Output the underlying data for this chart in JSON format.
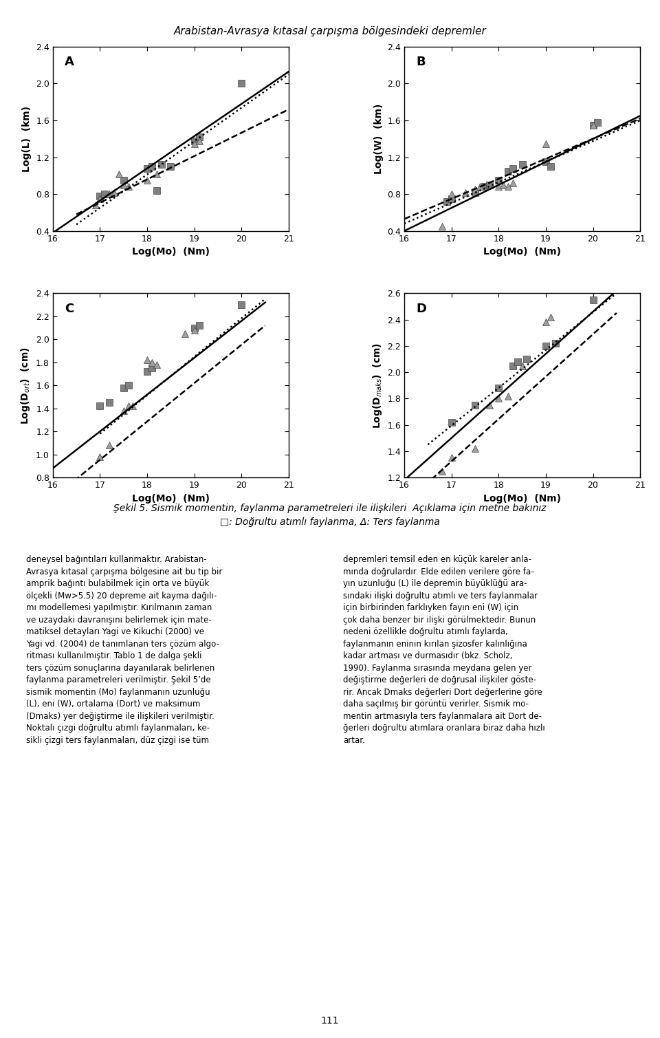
{
  "title": "Arabistan-Avrasya kıtasal çarpışma bölgesindeki depremler",
  "caption_line1": "Şekil 5. Sismik momentin, faylanma parametreleri ile ilişkileri  Açıklama için metne bakınız",
  "caption_line2": "□: Doğrultu atımlı faylanma, Δ: Ters faylanma",
  "panels": [
    {
      "label": "A",
      "ylabel": "Log(L)  (km)",
      "xlabel": "Log(Mo)  (Nm)",
      "xlim": [
        16,
        21
      ],
      "ylim": [
        0.4,
        2.4
      ],
      "yticks": [
        0.4,
        0.8,
        1.2,
        1.6,
        2.0,
        2.4
      ],
      "xticks": [
        16,
        17,
        18,
        19,
        20,
        21
      ],
      "squares": [
        [
          17.0,
          0.78
        ],
        [
          17.1,
          0.8
        ],
        [
          17.5,
          0.95
        ],
        [
          18.0,
          1.08
        ],
        [
          18.1,
          1.1
        ],
        [
          18.2,
          0.84
        ],
        [
          18.3,
          1.12
        ],
        [
          18.5,
          1.1
        ],
        [
          19.0,
          1.38
        ],
        [
          19.1,
          1.42
        ],
        [
          20.0,
          2.0
        ]
      ],
      "triangles": [
        [
          16.9,
          0.68
        ],
        [
          17.0,
          0.75
        ],
        [
          17.2,
          0.8
        ],
        [
          17.3,
          0.82
        ],
        [
          17.4,
          1.02
        ],
        [
          17.5,
          0.9
        ],
        [
          17.6,
          0.88
        ],
        [
          18.0,
          0.95
        ],
        [
          18.2,
          1.02
        ],
        [
          19.0,
          1.35
        ],
        [
          19.1,
          1.38
        ]
      ],
      "solid_line": {
        "x": [
          16,
          21
        ],
        "y": [
          0.38,
          2.13
        ]
      },
      "dotted_line": {
        "x": [
          16.5,
          21
        ],
        "y": [
          0.47,
          2.1
        ]
      },
      "dashed_line": {
        "x": [
          16.5,
          21
        ],
        "y": [
          0.58,
          1.72
        ]
      }
    },
    {
      "label": "B",
      "ylabel": "Log(W)  (km)",
      "xlabel": "Log(Mo)  (Nm)",
      "xlim": [
        16,
        21
      ],
      "ylim": [
        0.4,
        2.4
      ],
      "yticks": [
        0.4,
        0.8,
        1.2,
        1.6,
        2.0,
        2.4
      ],
      "xticks": [
        16,
        17,
        18,
        19,
        20,
        21
      ],
      "squares": [
        [
          16.9,
          0.72
        ],
        [
          17.0,
          0.75
        ],
        [
          17.5,
          0.82
        ],
        [
          17.7,
          0.88
        ],
        [
          17.8,
          0.9
        ],
        [
          18.0,
          0.95
        ],
        [
          18.2,
          1.05
        ],
        [
          18.3,
          1.08
        ],
        [
          18.5,
          1.12
        ],
        [
          19.0,
          1.15
        ],
        [
          19.1,
          1.1
        ],
        [
          20.0,
          1.55
        ],
        [
          20.1,
          1.58
        ]
      ],
      "triangles": [
        [
          16.8,
          0.45
        ],
        [
          17.0,
          0.8
        ],
        [
          17.3,
          0.82
        ],
        [
          17.5,
          0.85
        ],
        [
          17.6,
          0.88
        ],
        [
          18.0,
          0.88
        ],
        [
          18.1,
          0.9
        ],
        [
          18.2,
          0.88
        ],
        [
          18.3,
          0.92
        ],
        [
          19.0,
          1.35
        ],
        [
          20.0,
          1.55
        ]
      ],
      "solid_line": {
        "x": [
          16,
          21
        ],
        "y": [
          0.4,
          1.65
        ]
      },
      "dotted_line": {
        "x": [
          16,
          21
        ],
        "y": [
          0.48,
          1.6
        ]
      },
      "dashed_line": {
        "x": [
          16,
          21
        ],
        "y": [
          0.53,
          1.62
        ]
      }
    },
    {
      "label": "C",
      "ylabel": "Log(D$_{ort}$)  (cm)",
      "xlabel": "Log(Mo)  (Nm)",
      "xlim": [
        16,
        21
      ],
      "ylim": [
        0.8,
        2.4
      ],
      "yticks": [
        0.8,
        1.0,
        1.2,
        1.4,
        1.6,
        1.8,
        2.0,
        2.2,
        2.4
      ],
      "xticks": [
        16,
        17,
        18,
        19,
        20,
        21
      ],
      "squares": [
        [
          17.0,
          1.42
        ],
        [
          17.2,
          1.45
        ],
        [
          17.5,
          1.58
        ],
        [
          17.6,
          1.6
        ],
        [
          18.0,
          1.72
        ],
        [
          18.1,
          1.75
        ],
        [
          19.0,
          2.1
        ],
        [
          19.1,
          2.12
        ],
        [
          20.0,
          2.3
        ]
      ],
      "triangles": [
        [
          17.0,
          0.98
        ],
        [
          17.2,
          1.08
        ],
        [
          17.5,
          1.38
        ],
        [
          17.6,
          1.42
        ],
        [
          17.7,
          1.42
        ],
        [
          18.0,
          1.82
        ],
        [
          18.1,
          1.8
        ],
        [
          18.2,
          1.78
        ],
        [
          18.8,
          2.05
        ],
        [
          19.0,
          2.08
        ]
      ],
      "solid_line": {
        "x": [
          16,
          20.5
        ],
        "y": [
          0.88,
          2.32
        ]
      },
      "dotted_line": {
        "x": [
          17.0,
          20.5
        ],
        "y": [
          1.18,
          2.35
        ]
      },
      "dashed_line": {
        "x": [
          16,
          20.5
        ],
        "y": [
          0.62,
          2.12
        ]
      }
    },
    {
      "label": "D",
      "ylabel": "Log(D$_{maks}$)  (cm)",
      "xlabel": "Log(Mo)  (Nm)",
      "xlim": [
        16,
        21
      ],
      "ylim": [
        1.2,
        2.6
      ],
      "yticks": [
        1.2,
        1.4,
        1.6,
        1.8,
        2.0,
        2.2,
        2.4,
        2.6
      ],
      "xticks": [
        16,
        17,
        18,
        19,
        20,
        21
      ],
      "squares": [
        [
          17.0,
          1.62
        ],
        [
          17.5,
          1.75
        ],
        [
          18.0,
          1.88
        ],
        [
          18.3,
          2.05
        ],
        [
          18.4,
          2.08
        ],
        [
          18.6,
          2.1
        ],
        [
          19.0,
          2.2
        ],
        [
          19.2,
          2.22
        ],
        [
          20.0,
          2.55
        ]
      ],
      "triangles": [
        [
          16.8,
          1.25
        ],
        [
          17.0,
          1.35
        ],
        [
          17.5,
          1.42
        ],
        [
          17.8,
          1.75
        ],
        [
          18.0,
          1.8
        ],
        [
          18.2,
          1.82
        ],
        [
          18.5,
          2.05
        ],
        [
          19.0,
          2.38
        ],
        [
          19.1,
          2.42
        ]
      ],
      "solid_line": {
        "x": [
          16,
          20.5
        ],
        "y": [
          1.18,
          2.62
        ]
      },
      "dotted_line": {
        "x": [
          16.5,
          20.5
        ],
        "y": [
          1.45,
          2.6
        ]
      },
      "dashed_line": {
        "x": [
          16,
          20.5
        ],
        "y": [
          1.0,
          2.45
        ]
      }
    }
  ],
  "text_body_left": "deneysel bağıntıları kullanmaktır. Arabistan-\nAvrasya kıtasal çarpışma bölgesine ait bu tip bir\namprik bağıntı bulabilmek için orta ve büyük\nölçekli (Mw>5.5) 20 depreme ait kayma dağılı-\nmı modellemesi yapılmıştır. Kırılmanın zaman\nve uzaydaki davranışını belirlemek için mate-\nmatiksel detayları Yagi ve Kikuchi (2000) ve\nYagi vd. (2004) de tanımlanan ters çözüm algo-\nritması kullanılmıştır. Tablo 1 de dalga şekli\nters çözüm sonuçlarına dayanılarak belirlenen\nfaylanma parametreleri verilmiştir. Şekil 5’de\nsismik momentin (Mo) faylanmanın uzunluğu\n(L), eni (W), ortalama (Dort) ve maksimum\n(Dmaks) yer değiştirme ile ilişkileri verilmiştir.\nNoktalı çizgi doğrultu atımlı faylanmaları, ke-\nsikli çizgi ters faylanmaları, düz çizgi ise tüm",
  "text_body_right": "depremleri temsil eden en küçük kareler anla-\nmında doğrulardır. Elde edilen verilere göre fa-\nyın uzunluğu (L) ile depremin büyüklüğü ara-\nsındaki ilişki doğrultu atımlı ve ters faylanmalar\niçin birbirinden farklıyken fayın eni (W) için\nçok daha benzer bir ilişki görülmektedir. Bunun\nnedeni özellikle doğrultu atımlı faylarda,\nfaylanmanın eninin kırılan şizosfer kalınlığına\nkadar artması ve durmasıdır (bkz. Scholz,\n1990). Faylanma sırasında meydana gelen yer\ndeğiştirme değerleri de doğrusal ilişkiler göste-\nrir. Ancak Dmaks değerleri Dort değerlerine göre\ndaha saçılmış bir görüntü verirler. Sismik mo-\nmentin artmasıyla ters faylanmalara ait Dort de-\nğerleri doğrultu atımlara oranlara biraz daha hızlı\nartar.",
  "square_color": "#808080",
  "triangle_color": "#a0a0a0",
  "line_color": "#000000",
  "background_color": "#ffffff",
  "marker_size": 7,
  "line_width": 1.8,
  "title_fontsize": 11,
  "label_fontsize": 10,
  "tick_fontsize": 9,
  "panel_label_fontsize": 13,
  "caption_fontsize": 10,
  "body_fontsize": 8.5
}
